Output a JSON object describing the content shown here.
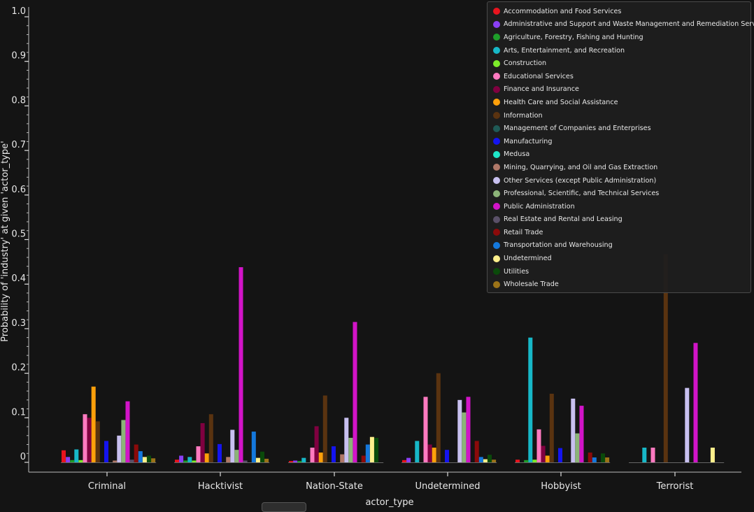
{
  "chart_data": {
    "type": "bar",
    "xlabel": "actor_type",
    "ylabel": "Probability of 'industry' at given 'actor_type'",
    "ylim": [
      0,
      1.0
    ],
    "yticks": [
      0,
      0.1,
      0.2,
      0.3,
      0.4,
      0.5,
      0.6,
      0.7,
      0.8,
      0.9,
      1.0
    ],
    "ytick_labels": [
      "0",
      "0.1",
      "0.2",
      "0.3",
      "0.4",
      "0.5",
      "0.6",
      "0.7",
      "0.8",
      "0.9",
      "1.0"
    ],
    "categories": [
      "Criminal",
      "Hacktivist",
      "Nation-State",
      "Undetermined",
      "Hobbyist",
      "Terrorist"
    ],
    "legend_position": "top-right",
    "series": [
      {
        "name": "Accommodation and Food Services",
        "color": "#e8141e",
        "values": [
          0.027,
          0.006,
          0.003,
          0.005,
          0.006,
          0
        ]
      },
      {
        "name": "Administrative and Support and Waste Management and Remediation Services",
        "color": "#8a3ff5",
        "values": [
          0.012,
          0.015,
          0.004,
          0.01,
          0,
          0
        ]
      },
      {
        "name": "Agriculture, Forestry, Fishing and Hunting",
        "color": "#1e9e2a",
        "values": [
          0.005,
          0.004,
          0.003,
          0,
          0.005,
          0
        ]
      },
      {
        "name": "Arts, Entertainment, and Recreation",
        "color": "#17b8c8",
        "values": [
          0.029,
          0.012,
          0.01,
          0.048,
          0.28,
          0.033
        ]
      },
      {
        "name": "Construction",
        "color": "#7dec2a",
        "values": [
          0.005,
          0.004,
          0,
          0,
          0.006,
          0
        ]
      },
      {
        "name": "Educational Services",
        "color": "#ff7ac0",
        "values": [
          0.108,
          0.036,
          0.033,
          0.147,
          0.074,
          0.033
        ]
      },
      {
        "name": "Finance and Insurance",
        "color": "#800040",
        "values": [
          0.1,
          0.088,
          0.081,
          0.04,
          0.037,
          0
        ]
      },
      {
        "name": "Health Care and Social Assistance",
        "color": "#ffa00a",
        "values": [
          0.17,
          0.02,
          0.022,
          0.033,
          0.015,
          0
        ]
      },
      {
        "name": "Information",
        "color": "#5a3310",
        "values": [
          0.092,
          0.108,
          0.15,
          0.2,
          0.154,
          0.467
        ]
      },
      {
        "name": "Management of Companies and Enterprises",
        "color": "#1f5a56",
        "values": [
          0,
          0,
          0,
          0,
          0,
          0
        ]
      },
      {
        "name": "Manufacturing",
        "color": "#1414f0",
        "values": [
          0.048,
          0.041,
          0.036,
          0.028,
          0.032,
          0
        ]
      },
      {
        "name": "Medusa",
        "color": "#1ee6c8",
        "values": [
          0,
          0,
          0,
          0,
          0,
          0
        ]
      },
      {
        "name": "Mining, Quarrying, and Oil and Gas Extraction",
        "color": "#b07868",
        "values": [
          0.004,
          0.012,
          0.018,
          0,
          0,
          0
        ]
      },
      {
        "name": "Other Services (except Public Administration)",
        "color": "#c8c0f0",
        "values": [
          0.06,
          0.073,
          0.1,
          0.14,
          0.143,
          0.167
        ]
      },
      {
        "name": "Professional, Scientific, and Technical Services",
        "color": "#8cb478",
        "values": [
          0.095,
          0.028,
          0.055,
          0.112,
          0.065,
          0
        ]
      },
      {
        "name": "Public Administration",
        "color": "#d214c8",
        "values": [
          0.137,
          0.438,
          0.315,
          0.147,
          0.127,
          0.268
        ]
      },
      {
        "name": "Real Estate and Rental and Leasing",
        "color": "#5a5068",
        "values": [
          0.006,
          0.004,
          0,
          0,
          0,
          0
        ]
      },
      {
        "name": "Retail Trade",
        "color": "#8c0a0a",
        "values": [
          0.04,
          0,
          0.015,
          0.048,
          0.022,
          0
        ]
      },
      {
        "name": "Transportation and Warehousing",
        "color": "#1478dc",
        "values": [
          0.025,
          0.069,
          0.04,
          0.012,
          0.011,
          0
        ]
      },
      {
        "name": "Undetermined",
        "color": "#fff08c",
        "values": [
          0.012,
          0.01,
          0.057,
          0.007,
          0,
          0.033
        ]
      },
      {
        "name": "Utilities",
        "color": "#0a4a0a",
        "values": [
          0.015,
          0.024,
          0.055,
          0.017,
          0.02,
          0
        ]
      },
      {
        "name": "Wholesale Trade",
        "color": "#9b7318",
        "values": [
          0.009,
          0.008,
          0,
          0.006,
          0.011,
          0
        ]
      }
    ]
  }
}
